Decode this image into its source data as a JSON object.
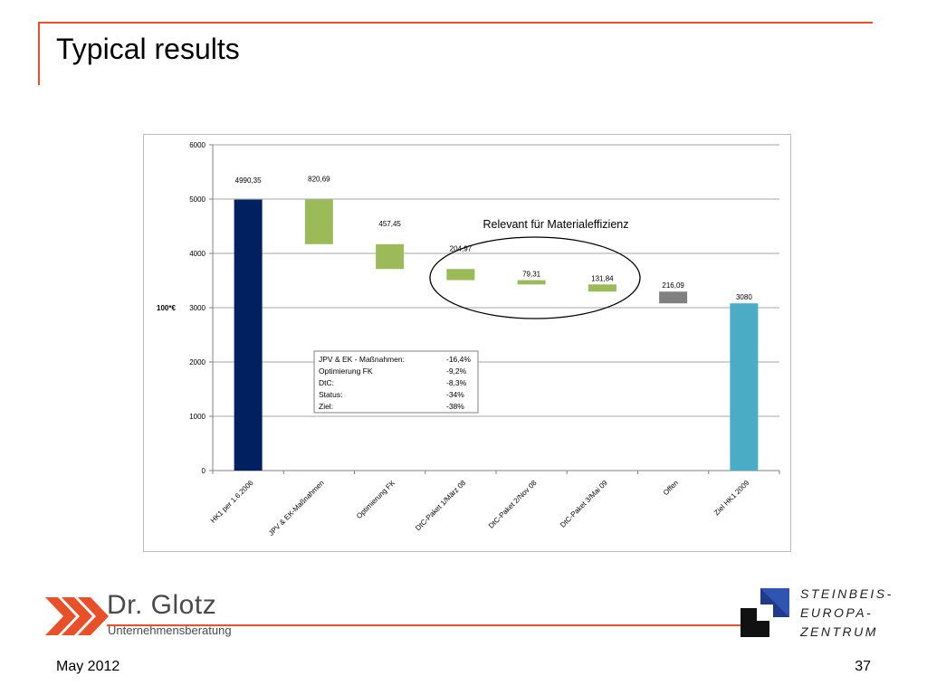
{
  "slide": {
    "title": "Typical results",
    "footer_date": "May 2012",
    "page_number": "37"
  },
  "logos": {
    "left_company_name": "Dr. Glotz",
    "left_company_sub": "Unternehmensberatung",
    "right_lines": [
      "STEINBEIS-",
      "EUROPA-",
      "ZENTRUM"
    ]
  },
  "colors": {
    "accent_rule": "#e8502a",
    "bar_start": "#002060",
    "bar_step": "#9bbb59",
    "bar_open": "#808080",
    "bar_target": "#4bacc6"
  },
  "chart_data": {
    "type": "bar",
    "subtype": "waterfall",
    "categories": [
      "HK1 per 1.6.2006",
      "JPV & EK-Maßnahmen",
      "Optimierung FK",
      "DtC-Paket 1/März 08",
      "DtC-Paket 2/Nov 08",
      "DtC-Paket 3/Mai 09",
      "Offen",
      "Ziel HK1 2009"
    ],
    "bars": [
      {
        "label": "4990,35",
        "bottom": 0,
        "top": 4990.35,
        "kind": "start"
      },
      {
        "label": "820,69",
        "bottom": 4169.66,
        "top": 4990.35,
        "kind": "step"
      },
      {
        "label": "457,45",
        "bottom": 3712.21,
        "top": 4169.66,
        "kind": "step"
      },
      {
        "label": "204,97",
        "bottom": 3507.24,
        "top": 3712.21,
        "kind": "step"
      },
      {
        "label": "79,31",
        "bottom": 3427.93,
        "top": 3507.24,
        "kind": "step"
      },
      {
        "label": "131,84",
        "bottom": 3296.09,
        "top": 3427.93,
        "kind": "step"
      },
      {
        "label": "216,09",
        "bottom": 3080,
        "top": 3296.09,
        "kind": "open"
      },
      {
        "label": "3080",
        "bottom": 0,
        "top": 3080,
        "kind": "target"
      }
    ],
    "ylabel": "100*€",
    "ylim": [
      0,
      6000
    ],
    "yticks": [
      0,
      1000,
      2000,
      3000,
      4000,
      5000,
      6000
    ],
    "grid": true,
    "annotation": "Relevant für Materialeffizienz",
    "summary_table": [
      {
        "label": "JPV & EK - Maßnahmen:",
        "value": "-16,4%"
      },
      {
        "label": "Optimierung FK",
        "value": "-9,2%"
      },
      {
        "label": "DtC:",
        "value": "-8,3%"
      },
      {
        "label": "Status:",
        "value": "-34%"
      },
      {
        "label": "Ziel:",
        "value": "-38%"
      }
    ]
  }
}
